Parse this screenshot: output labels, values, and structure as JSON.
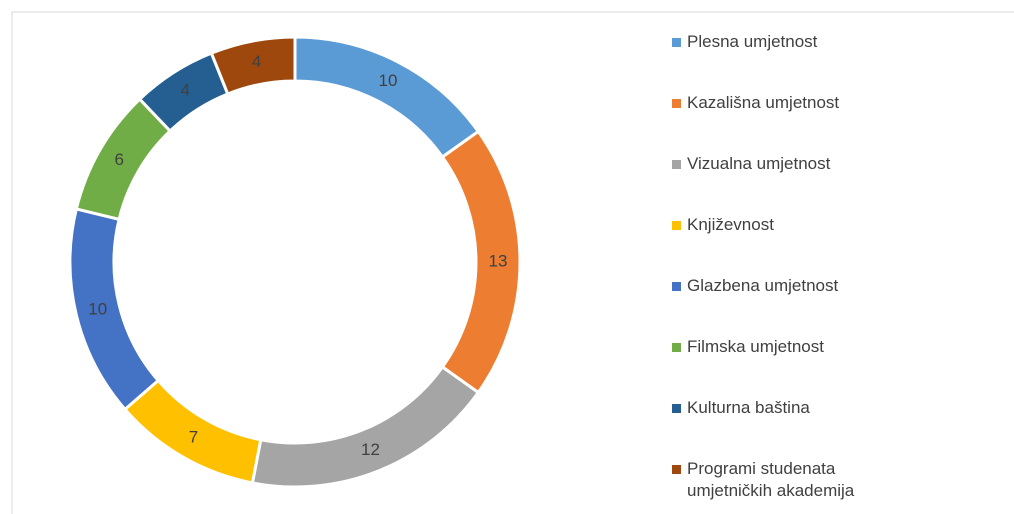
{
  "chart_data": {
    "type": "donut",
    "categories": [
      "Plesna umjetnost",
      "Kazališna umjetnost",
      "Vizualna umjetnost",
      "Književnost",
      "Glazbena umjetnost",
      "Filmska umjetnost",
      "Kulturna baština",
      "Programi studenata umjetničkih akademija"
    ],
    "values": [
      10,
      13,
      12,
      7,
      10,
      6,
      4,
      4
    ],
    "colors": [
      "#5b9bd5",
      "#ed7d31",
      "#a5a5a5",
      "#ffc000",
      "#4472c4",
      "#70ad47",
      "#255e91",
      "#9e480e"
    ],
    "legend": "right"
  }
}
